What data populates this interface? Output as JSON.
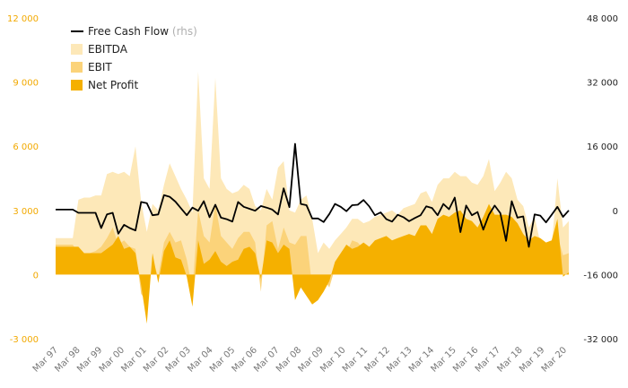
{
  "chart_data": {
    "type": "area",
    "x_tick_labels": [
      "Mar 97",
      "Mar 98",
      "Mar 99",
      "Mar 00",
      "Mar 01",
      "Mar 02",
      "Mar 03",
      "Mar 04",
      "Mar 05",
      "Mar 06",
      "Mar 07",
      "Mar 08",
      "Mar 09",
      "Mar 10",
      "Mar 11",
      "Mar 12",
      "Mar 13",
      "Mar 14",
      "Mar 15",
      "Mar 16",
      "Mar 17",
      "Mar 18",
      "Mar 19",
      "Mar 20"
    ],
    "y_left_ticks": [
      "12 000",
      "9 000",
      "6 000",
      "3 000",
      "0",
      "-3 000"
    ],
    "y_left_values": [
      12000,
      9000,
      6000,
      3000,
      0,
      -3000
    ],
    "y_left_lim": [
      -3000,
      12000
    ],
    "y_right_ticks": [
      "48 000",
      "32 000",
      "16 000",
      "0",
      "-16 000",
      "-32 000"
    ],
    "y_right_values": [
      48000,
      32000,
      16000,
      0,
      -16000,
      -32000
    ],
    "y_right_lim": [
      -32000,
      48000
    ],
    "grid": false,
    "legend_position": "top-left",
    "colors": {
      "ebitda": "#fde8b8",
      "ebit": "#fbd37a",
      "net_profit": "#f5b000",
      "fcf": "#000000",
      "left_axis": "#f2a900"
    },
    "legend": [
      {
        "key": "fcf",
        "label": "Free Cash Flow",
        "suffix": "(rhs)",
        "style": "line"
      },
      {
        "key": "ebitda",
        "label": "EBITDA",
        "style": "area"
      },
      {
        "key": "ebit",
        "label": "EBIT",
        "style": "area"
      },
      {
        "key": "net_profit",
        "label": "Net Profit",
        "style": "area"
      }
    ],
    "x_start": "Mar 97",
    "x_end": "Mar 20",
    "period": "quarter",
    "series": [
      {
        "key": "ebitda",
        "values": [
          1700,
          1700,
          1700,
          1700,
          3500,
          3600,
          3600,
          3700,
          3700,
          4700,
          4800,
          4700,
          4800,
          4600,
          6000,
          3400,
          2000,
          3300,
          3000,
          4200,
          5200,
          4600,
          4000,
          3500,
          2900,
          9500,
          4500,
          4000,
          9200,
          4500,
          4000,
          3800,
          3900,
          4200,
          4000,
          3200,
          3000,
          4000,
          3500,
          5000,
          5300,
          3000,
          2900,
          3500,
          3700,
          2600,
          1000,
          1500,
          1200,
          1600,
          1900,
          2200,
          2600,
          2600,
          2400,
          2500,
          2700,
          2800,
          2900,
          3000,
          2800,
          3100,
          3200,
          3300,
          3800,
          3900,
          3400,
          4200,
          4500,
          4500,
          4800,
          4600,
          4600,
          4300,
          4200,
          4600,
          5400,
          3900,
          4300,
          4800,
          4500,
          3500,
          3200,
          2200,
          2700,
          1500,
          1400,
          1300,
          4500,
          2200,
          2500
        ]
      },
      {
        "key": "ebit",
        "values": [
          1400,
          1400,
          1400,
          1400,
          1000,
          1000,
          1000,
          1100,
          1300,
          1700,
          2200,
          1400,
          1600,
          1300,
          1200,
          -900,
          -1300,
          700,
          -100,
          1500,
          2000,
          1500,
          1600,
          700,
          -700,
          3000,
          1800,
          1500,
          3300,
          1800,
          1500,
          1200,
          1700,
          2000,
          2000,
          1500,
          -800,
          2300,
          2500,
          1200,
          2200,
          1500,
          1400,
          1800,
          1800,
          -600,
          -800,
          -200,
          -600,
          300,
          700,
          1000,
          1600,
          1500,
          1200,
          1000,
          1300,
          1400,
          1500,
          1300,
          1400,
          1600,
          1700,
          1600,
          2000,
          2200,
          1800,
          2300,
          2400,
          2500,
          2700,
          2800,
          2400,
          2300,
          2000,
          2500,
          3000,
          2500,
          2600,
          2800,
          2500,
          2200,
          1700,
          1100,
          1500,
          700,
          700,
          600,
          1800,
          900,
          1000
        ]
      },
      {
        "key": "net_profit",
        "values": [
          1300,
          1300,
          1300,
          1300,
          1300,
          1000,
          1000,
          1000,
          1000,
          1200,
          1400,
          1800,
          1200,
          1300,
          1000,
          -500,
          -2300,
          1000,
          -400,
          1100,
          1600,
          800,
          700,
          -100,
          -1500,
          1600,
          500,
          700,
          1100,
          600,
          400,
          600,
          700,
          1200,
          1300,
          1000,
          -200,
          1600,
          1500,
          1000,
          1400,
          1200,
          -1200,
          -600,
          -1000,
          -1400,
          -1200,
          -800,
          -300,
          600,
          1000,
          1400,
          1200,
          1300,
          1500,
          1300,
          1600,
          1700,
          1800,
          1600,
          1700,
          1800,
          1900,
          1800,
          2300,
          2300,
          1900,
          2600,
          2800,
          2700,
          2900,
          3000,
          2600,
          2500,
          2200,
          2700,
          3300,
          2800,
          2800,
          2800,
          2700,
          2400,
          1900,
          1600,
          1800,
          1700,
          1500,
          1600,
          2600,
          -100,
          100
        ]
      },
      {
        "key": "fcf",
        "values": [
          200,
          200,
          200,
          200,
          -600,
          -600,
          -600,
          -600,
          -4400,
          -1000,
          -600,
          -5800,
          -3600,
          -4400,
          -5000,
          2100,
          1800,
          -1200,
          -1000,
          3800,
          3400,
          2200,
          500,
          -1200,
          700,
          -100,
          2300,
          -1700,
          1400,
          -1800,
          -2200,
          -2800,
          2100,
          900,
          400,
          -100,
          1100,
          700,
          200,
          -1000,
          5500,
          800,
          16600,
          1600,
          1300,
          -2000,
          -2000,
          -2900,
          -900,
          1600,
          900,
          -200,
          1300,
          1400,
          2600,
          1000,
          -1200,
          -500,
          -2200,
          -2800,
          -1100,
          -1700,
          -2700,
          -1900,
          -1200,
          1000,
          600,
          -1200,
          1600,
          300,
          3200,
          -5400,
          1200,
          -1200,
          -400,
          -4800,
          -1100,
          1200,
          -700,
          -7600,
          2300,
          -1800,
          -1500,
          -9100,
          -1000,
          -1300,
          -3000,
          -1100,
          900,
          -1600,
          0
        ]
      }
    ]
  }
}
